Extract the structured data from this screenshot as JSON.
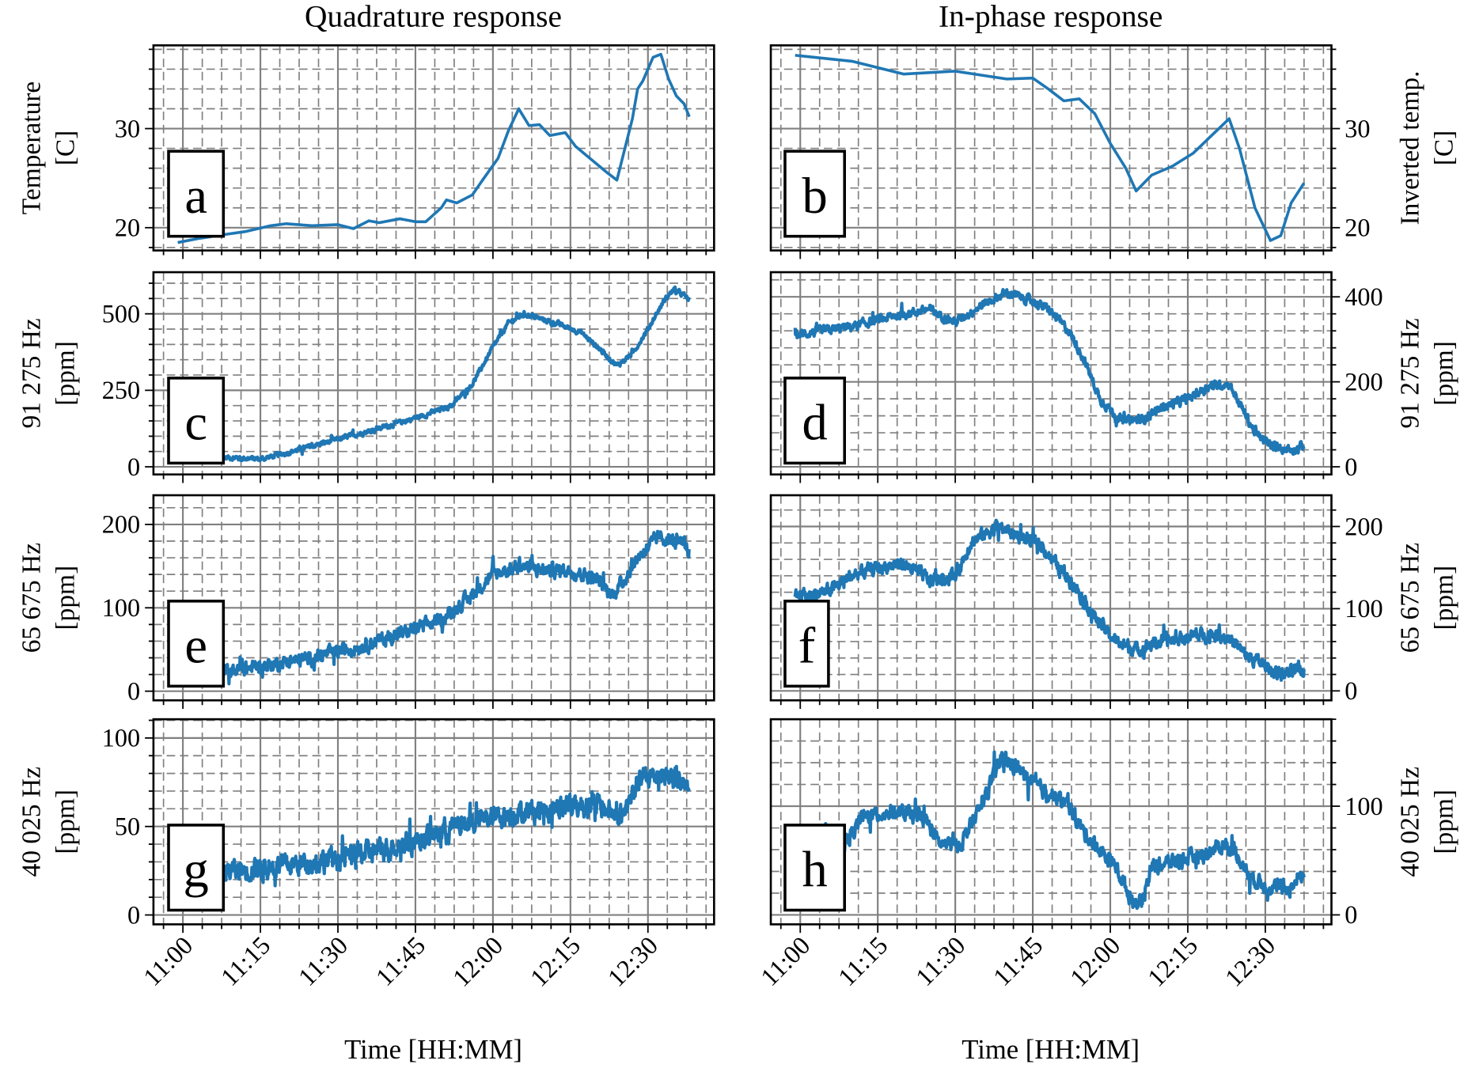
{
  "chart_data": [
    {
      "id": "a",
      "type": "line",
      "column": "Quadrature response",
      "letter": "a",
      "ylabel": [
        "Temperature",
        "[C]"
      ],
      "yaxis_side": "left",
      "yticks": [
        20,
        30
      ],
      "ylim": [
        17.7,
        38.4
      ],
      "yminor": 2,
      "noise": 0,
      "line_width": 3,
      "points": [
        [
          -1,
          18.5
        ],
        [
          3,
          18.9
        ],
        [
          8,
          19.3
        ],
        [
          12,
          19.6
        ],
        [
          17,
          20.2
        ],
        [
          20,
          20.4
        ],
        [
          25,
          20.2
        ],
        [
          30,
          20.3
        ],
        [
          33,
          19.9
        ],
        [
          36,
          20.7
        ],
        [
          38,
          20.5
        ],
        [
          42,
          20.9
        ],
        [
          45,
          20.6
        ],
        [
          47,
          20.6
        ],
        [
          50,
          22.0
        ],
        [
          51,
          22.8
        ],
        [
          53,
          22.5
        ],
        [
          56,
          23.3
        ],
        [
          58,
          24.8
        ],
        [
          61,
          27
        ],
        [
          63,
          29.8
        ],
        [
          65,
          32
        ],
        [
          67,
          30.3
        ],
        [
          69,
          30.4
        ],
        [
          71,
          29.3
        ],
        [
          74,
          29.6
        ],
        [
          76,
          28.2
        ],
        [
          79,
          26.9
        ],
        [
          82,
          25.6
        ],
        [
          84,
          24.8
        ],
        [
          87,
          31
        ],
        [
          88,
          34
        ],
        [
          89,
          34.8
        ],
        [
          91,
          37.2
        ],
        [
          92.5,
          37.5
        ],
        [
          94,
          35
        ],
        [
          95.5,
          33.3
        ],
        [
          97,
          32.5
        ],
        [
          98,
          31.2
        ]
      ]
    },
    {
      "id": "b",
      "type": "line",
      "column": "In-phase response",
      "letter": "b",
      "ylabel": [
        "Inverted temp.",
        "[C]"
      ],
      "yaxis_side": "right",
      "yticks": [
        20,
        30
      ],
      "ylim": [
        17.7,
        38.4
      ],
      "yminor": 2,
      "noise": 0,
      "line_width": 3,
      "points": [
        [
          -1,
          37.4
        ],
        [
          10,
          36.8
        ],
        [
          20,
          35.5
        ],
        [
          30,
          35.8
        ],
        [
          40,
          35.0
        ],
        [
          45,
          35.1
        ],
        [
          48,
          34
        ],
        [
          51,
          32.8
        ],
        [
          54,
          33.0
        ],
        [
          57,
          31.5
        ],
        [
          60,
          28.5
        ],
        [
          63,
          26
        ],
        [
          65,
          23.7
        ],
        [
          68,
          25.3
        ],
        [
          72,
          26.2
        ],
        [
          76,
          27.5
        ],
        [
          80,
          29.5
        ],
        [
          83,
          31
        ],
        [
          85,
          28
        ],
        [
          88,
          22
        ],
        [
          91,
          18.7
        ],
        [
          93,
          19.2
        ],
        [
          95,
          22.5
        ],
        [
          97.5,
          24.5
        ]
      ]
    },
    {
      "id": "c",
      "type": "line",
      "column": "Quadrature response",
      "letter": "c",
      "ylabel": [
        "91 275 Hz",
        "[ppm]"
      ],
      "yaxis_side": "left",
      "yticks": [
        0,
        250,
        500
      ],
      "ylim": [
        -25,
        636
      ],
      "yminor": 50,
      "noise": 14,
      "line_width": 3.5,
      "points": [
        [
          5,
          30
        ],
        [
          10,
          30
        ],
        [
          15,
          25
        ],
        [
          20,
          45
        ],
        [
          30,
          90
        ],
        [
          40,
          135
        ],
        [
          47,
          170
        ],
        [
          52,
          200
        ],
        [
          56,
          270
        ],
        [
          60,
          390
        ],
        [
          63,
          470
        ],
        [
          66,
          500
        ],
        [
          72,
          470
        ],
        [
          77,
          440
        ],
        [
          81,
          380
        ],
        [
          84,
          330
        ],
        [
          87,
          370
        ],
        [
          90,
          450
        ],
        [
          93,
          540
        ],
        [
          95,
          580
        ],
        [
          97,
          560
        ],
        [
          98,
          545
        ]
      ]
    },
    {
      "id": "d",
      "type": "line",
      "column": "In-phase response",
      "letter": "d",
      "ylabel": [
        "91 275 Hz",
        "[ppm]"
      ],
      "yaxis_side": "right",
      "yticks": [
        0,
        200,
        400
      ],
      "ylim": [
        -18,
        458
      ],
      "yminor": 40,
      "noise": 18,
      "line_width": 3.5,
      "points": [
        [
          -1,
          310
        ],
        [
          10,
          330
        ],
        [
          20,
          360
        ],
        [
          25,
          370
        ],
        [
          30,
          340
        ],
        [
          35,
          380
        ],
        [
          40,
          410
        ],
        [
          45,
          390
        ],
        [
          48,
          370
        ],
        [
          52,
          320
        ],
        [
          55,
          250
        ],
        [
          58,
          160
        ],
        [
          62,
          110
        ],
        [
          66,
          110
        ],
        [
          70,
          140
        ],
        [
          75,
          160
        ],
        [
          79,
          190
        ],
        [
          83,
          195
        ],
        [
          85,
          150
        ],
        [
          88,
          80
        ],
        [
          91,
          50
        ],
        [
          95,
          40
        ],
        [
          97.5,
          50
        ]
      ]
    },
    {
      "id": "e",
      "type": "line",
      "column": "Quadrature response",
      "letter": "e",
      "ylabel": [
        "65 675 Hz",
        "[ppm]"
      ],
      "yaxis_side": "left",
      "yticks": [
        0,
        100,
        200
      ],
      "ylim": [
        -11,
        235
      ],
      "yminor": 20,
      "noise": 14,
      "line_width": 3.5,
      "points": [
        [
          5,
          20
        ],
        [
          15,
          30
        ],
        [
          25,
          40
        ],
        [
          35,
          55
        ],
        [
          45,
          75
        ],
        [
          50,
          85
        ],
        [
          55,
          110
        ],
        [
          60,
          140
        ],
        [
          65,
          150
        ],
        [
          70,
          145
        ],
        [
          75,
          145
        ],
        [
          80,
          135
        ],
        [
          83,
          115
        ],
        [
          85,
          130
        ],
        [
          88,
          160
        ],
        [
          92,
          185
        ],
        [
          95,
          180
        ],
        [
          98,
          170
        ]
      ]
    },
    {
      "id": "f",
      "type": "line",
      "column": "In-phase response",
      "letter": "f",
      "ylabel": [
        "65 675 Hz",
        "[ppm]"
      ],
      "yaxis_side": "right",
      "yticks": [
        0,
        100,
        200
      ],
      "ylim": [
        -11.5,
        238
      ],
      "yminor": 20,
      "noise": 14,
      "line_width": 3.5,
      "points": [
        [
          -1,
          115
        ],
        [
          5,
          120
        ],
        [
          10,
          140
        ],
        [
          15,
          150
        ],
        [
          20,
          155
        ],
        [
          25,
          135
        ],
        [
          30,
          140
        ],
        [
          33,
          180
        ],
        [
          38,
          200
        ],
        [
          42,
          190
        ],
        [
          47,
          175
        ],
        [
          50,
          150
        ],
        [
          53,
          130
        ],
        [
          57,
          90
        ],
        [
          61,
          60
        ],
        [
          65,
          50
        ],
        [
          70,
          60
        ],
        [
          75,
          65
        ],
        [
          80,
          70
        ],
        [
          83,
          65
        ],
        [
          86,
          45
        ],
        [
          90,
          30
        ],
        [
          93,
          20
        ],
        [
          97.5,
          25
        ]
      ]
    },
    {
      "id": "g",
      "type": "line",
      "column": "Quadrature response",
      "letter": "g",
      "ylabel": [
        "40 025 Hz",
        "[ppm]"
      ],
      "yaxis_side": "left",
      "yticks": [
        0,
        50,
        100
      ],
      "ylim": [
        -5.3,
        110.6
      ],
      "yminor": 10,
      "noise": 11,
      "line_width": 3.5,
      "points": [
        [
          0,
          25
        ],
        [
          10,
          25
        ],
        [
          20,
          28
        ],
        [
          30,
          32
        ],
        [
          40,
          38
        ],
        [
          45,
          42
        ],
        [
          55,
          52
        ],
        [
          65,
          58
        ],
        [
          75,
          62
        ],
        [
          80,
          62
        ],
        [
          85,
          55
        ],
        [
          88,
          75
        ],
        [
          92,
          80
        ],
        [
          95,
          78
        ],
        [
          98,
          70
        ]
      ]
    },
    {
      "id": "h",
      "type": "line",
      "column": "In-phase response",
      "letter": "h",
      "ylabel": [
        "40 025 Hz",
        "[ppm]"
      ],
      "yaxis_side": "right",
      "yticks": [
        0,
        100
      ],
      "ylim": [
        -8.7,
        180
      ],
      "yminor": 20,
      "noise": 12,
      "line_width": 3.5,
      "points": [
        [
          -1,
          75
        ],
        [
          5,
          75
        ],
        [
          8,
          60
        ],
        [
          12,
          90
        ],
        [
          18,
          95
        ],
        [
          24,
          90
        ],
        [
          27,
          65
        ],
        [
          31,
          65
        ],
        [
          35,
          100
        ],
        [
          39,
          145
        ],
        [
          42,
          135
        ],
        [
          45,
          120
        ],
        [
          49,
          110
        ],
        [
          52,
          100
        ],
        [
          55,
          75
        ],
        [
          58,
          60
        ],
        [
          61,
          45
        ],
        [
          64,
          15
        ],
        [
          66,
          10
        ],
        [
          68,
          45
        ],
        [
          73,
          50
        ],
        [
          78,
          55
        ],
        [
          82,
          65
        ],
        [
          84,
          60
        ],
        [
          87,
          35
        ],
        [
          91,
          25
        ],
        [
          95,
          25
        ],
        [
          97.5,
          40
        ]
      ]
    }
  ],
  "x_axis": {
    "label": "Time [HH:MM]",
    "origin": "11:00",
    "unit": "minutes after origin",
    "ticks": [
      {
        "v": 0,
        "label": "11:00"
      },
      {
        "v": 15,
        "label": "11:15"
      },
      {
        "v": 30,
        "label": "11:30"
      },
      {
        "v": 45,
        "label": "11:45"
      },
      {
        "v": 60,
        "label": "12:00"
      },
      {
        "v": 75,
        "label": "12:15"
      },
      {
        "v": 90,
        "label": "12:30"
      }
    ],
    "xlim": [
      -5.7,
      102.8
    ],
    "xminor": 3.75
  },
  "columns": [
    "Quadrature response",
    "In-phase response"
  ],
  "colors": {
    "line": "#1f77b4",
    "grid": "#808080",
    "axis": "#000000"
  }
}
